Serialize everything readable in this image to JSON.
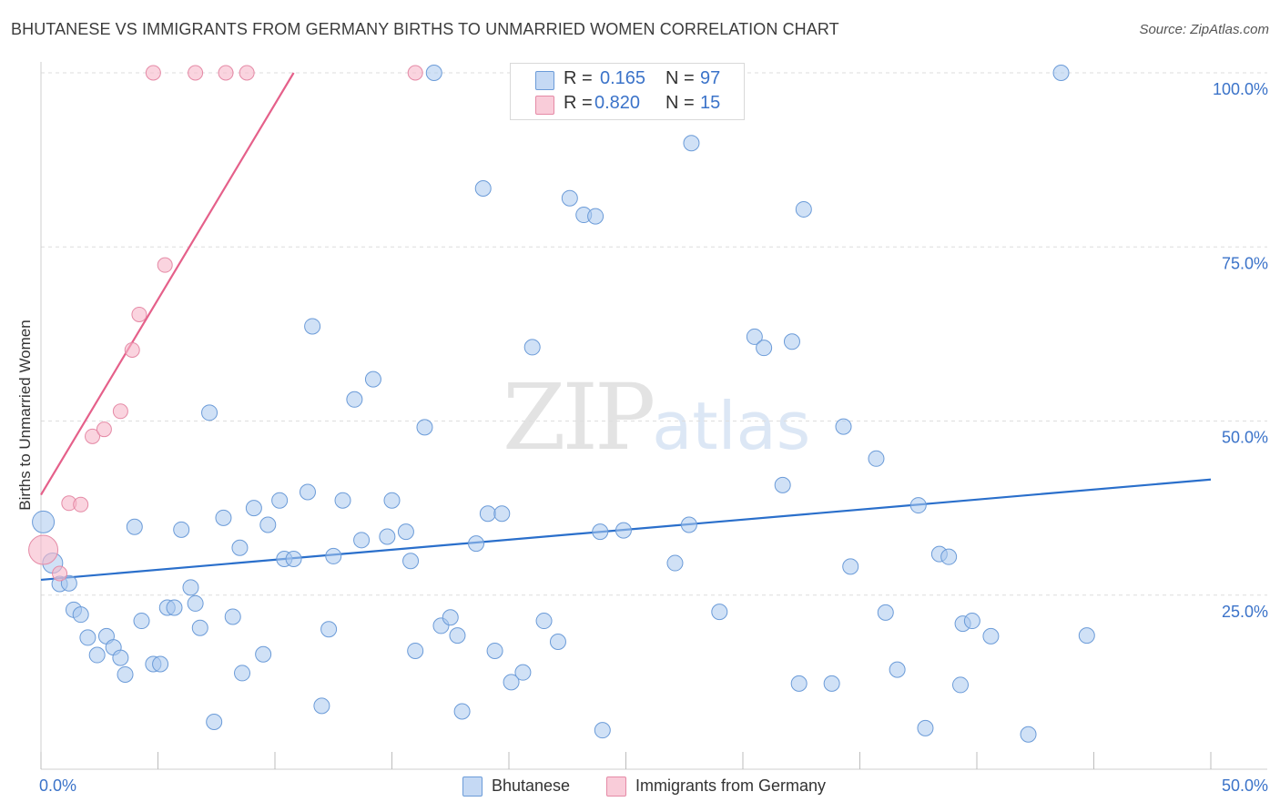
{
  "header": {
    "title": "BHUTANESE VS IMMIGRANTS FROM GERMANY BIRTHS TO UNMARRIED WOMEN CORRELATION CHART",
    "source": "Source: ZipAtlas.com"
  },
  "watermark": {
    "zip": "ZIP",
    "atlas": "atlas"
  },
  "legend_top": {
    "rows": [
      {
        "r_label": "R =",
        "r_value": "0.165",
        "n_label": "N =",
        "n_value": "97",
        "color": "#aac8ef"
      },
      {
        "r_label": "R =",
        "r_value": "0.820",
        "n_label": "N =",
        "n_value": "15",
        "color": "#f6b8c9"
      }
    ]
  },
  "legend_bottom": {
    "items": [
      {
        "label": "Bhutanese",
        "color": "#aac8ef"
      },
      {
        "label": "Immigrants from Germany",
        "color": "#f6b8c9"
      }
    ]
  },
  "chart_data": {
    "type": "scatter",
    "title": "BHUTANESE VS IMMIGRANTS FROM GERMANY BIRTHS TO UNMARRIED WOMEN CORRELATION CHART",
    "xlabel": "",
    "ylabel": "Births to Unmarried Women",
    "xlim": [
      0,
      50
    ],
    "ylim": [
      0,
      100
    ],
    "x_tick_labels": [
      "0.0%",
      "50.0%"
    ],
    "y_tick_values": [
      25,
      50,
      75,
      100
    ],
    "y_tick_labels": [
      "25.0%",
      "50.0%",
      "75.0%",
      "100.0%"
    ],
    "grid": true,
    "series": [
      {
        "name": "Bhutanese",
        "color": "#aac8ef",
        "stroke": "#6b9bd8",
        "line_color": "#2a6fcb",
        "trend": {
          "x": [
            0,
            50
          ],
          "y": [
            27.2,
            41.6
          ]
        },
        "points": [
          [
            0.1,
            35.5
          ],
          [
            0.5,
            29.6
          ],
          [
            0.8,
            26.6
          ],
          [
            1.2,
            26.7
          ],
          [
            1.4,
            22.9
          ],
          [
            1.7,
            22.2
          ],
          [
            2.0,
            18.9
          ],
          [
            2.4,
            16.4
          ],
          [
            2.8,
            19.1
          ],
          [
            3.1,
            17.5
          ],
          [
            3.4,
            16.0
          ],
          [
            3.6,
            13.6
          ],
          [
            4.0,
            34.8
          ],
          [
            4.3,
            21.3
          ],
          [
            4.8,
            15.1
          ],
          [
            5.1,
            15.1
          ],
          [
            5.4,
            23.2
          ],
          [
            5.7,
            23.2
          ],
          [
            6.0,
            34.4
          ],
          [
            6.4,
            26.1
          ],
          [
            6.6,
            23.8
          ],
          [
            6.8,
            20.3
          ],
          [
            7.2,
            51.2
          ],
          [
            7.4,
            6.8
          ],
          [
            7.8,
            36.1
          ],
          [
            8.2,
            21.9
          ],
          [
            8.5,
            31.8
          ],
          [
            8.6,
            13.8
          ],
          [
            9.1,
            37.5
          ],
          [
            9.5,
            16.5
          ],
          [
            9.7,
            35.1
          ],
          [
            10.2,
            38.6
          ],
          [
            10.4,
            30.2
          ],
          [
            10.8,
            30.2
          ],
          [
            11.4,
            39.8
          ],
          [
            11.6,
            63.6
          ],
          [
            12.0,
            9.1
          ],
          [
            12.3,
            20.1
          ],
          [
            12.5,
            30.6
          ],
          [
            12.9,
            38.6
          ],
          [
            13.4,
            53.1
          ],
          [
            13.7,
            32.9
          ],
          [
            14.2,
            56.0
          ],
          [
            14.8,
            33.4
          ],
          [
            15.0,
            38.6
          ],
          [
            15.6,
            34.1
          ],
          [
            15.8,
            29.9
          ],
          [
            16.0,
            17.0
          ],
          [
            16.4,
            49.1
          ],
          [
            16.8,
            100
          ],
          [
            17.1,
            20.6
          ],
          [
            17.5,
            21.8
          ],
          [
            17.8,
            19.2
          ],
          [
            18.0,
            8.3
          ],
          [
            18.6,
            32.4
          ],
          [
            18.9,
            83.4
          ],
          [
            19.1,
            36.7
          ],
          [
            19.4,
            17.0
          ],
          [
            19.7,
            36.7
          ],
          [
            20.1,
            12.5
          ],
          [
            20.6,
            13.9
          ],
          [
            21.0,
            60.6
          ],
          [
            21.5,
            21.3
          ],
          [
            22.1,
            18.3
          ],
          [
            22.6,
            82.0
          ],
          [
            23.2,
            79.6
          ],
          [
            23.7,
            79.4
          ],
          [
            23.9,
            34.1
          ],
          [
            24.0,
            5.6
          ],
          [
            24.9,
            34.3
          ],
          [
            27.1,
            29.6
          ],
          [
            27.7,
            35.1
          ],
          [
            27.8,
            89.9
          ],
          [
            29.0,
            22.6
          ],
          [
            30.5,
            62.1
          ],
          [
            30.9,
            60.5
          ],
          [
            31.7,
            40.8
          ],
          [
            32.1,
            61.4
          ],
          [
            32.4,
            12.3
          ],
          [
            32.6,
            80.4
          ],
          [
            33.8,
            12.3
          ],
          [
            34.3,
            49.2
          ],
          [
            34.6,
            29.1
          ],
          [
            35.7,
            44.6
          ],
          [
            36.1,
            22.5
          ],
          [
            36.6,
            14.3
          ],
          [
            37.5,
            37.9
          ],
          [
            37.8,
            5.9
          ],
          [
            38.4,
            30.9
          ],
          [
            38.8,
            30.5
          ],
          [
            39.3,
            12.1
          ],
          [
            39.4,
            20.9
          ],
          [
            39.8,
            21.3
          ],
          [
            40.6,
            19.1
          ],
          [
            42.2,
            5.0
          ],
          [
            43.6,
            100
          ],
          [
            44.7,
            19.2
          ]
        ],
        "radii": [
          12,
          10,
          9
        ]
      },
      {
        "name": "Immigrants from Germany",
        "color": "#f6b8c9",
        "stroke": "#e58aa6",
        "line_color": "#e5608a",
        "trend": {
          "x": [
            0,
            10.8
          ],
          "y": [
            39.4,
            100
          ]
        },
        "points": [
          [
            0.1,
            31.5
          ],
          [
            0.8,
            28.1
          ],
          [
            1.2,
            38.2
          ],
          [
            1.7,
            38.0
          ],
          [
            2.2,
            47.8
          ],
          [
            2.7,
            48.8
          ],
          [
            3.4,
            51.4
          ],
          [
            3.9,
            60.2
          ],
          [
            4.2,
            65.3
          ],
          [
            4.8,
            100
          ],
          [
            5.3,
            72.4
          ],
          [
            6.6,
            100
          ],
          [
            7.9,
            100
          ],
          [
            8.8,
            100
          ],
          [
            16.0,
            100
          ]
        ]
      }
    ]
  }
}
